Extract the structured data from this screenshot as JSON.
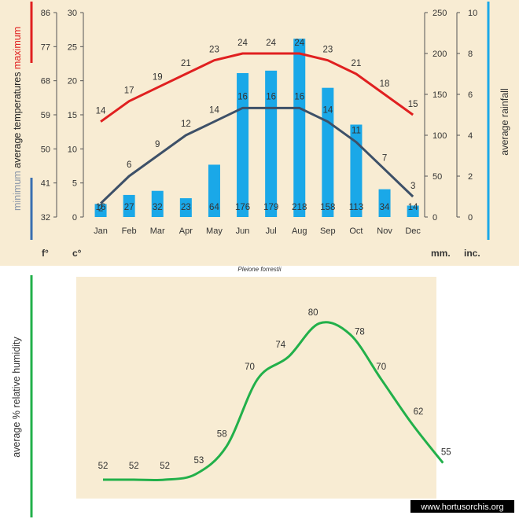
{
  "chart_data": [
    {
      "type": "bar+line",
      "subtitle": "Pleione forrestii",
      "categories": [
        "Jan",
        "Feb",
        "Mar",
        "Apr",
        "May",
        "Jun",
        "Jul",
        "Aug",
        "Sep",
        "Oct",
        "Nov",
        "Dec"
      ],
      "rainfall_mm": [
        16,
        27,
        32,
        23,
        64,
        176,
        179,
        218,
        158,
        113,
        34,
        14
      ],
      "series": [
        {
          "name": "maximum",
          "color": "#e02020",
          "values": [
            14,
            17,
            19,
            21,
            23,
            24,
            24,
            24,
            23,
            21,
            18,
            15
          ]
        },
        {
          "name": "minimum",
          "color": "#3d5068",
          "values": [
            2,
            6,
            9,
            12,
            14,
            16,
            16,
            16,
            14,
            11,
            7,
            3
          ]
        }
      ],
      "bar_color": "#1aa8e8",
      "y_celsius": {
        "ticks": [
          0,
          5,
          10,
          15,
          20,
          25,
          30
        ],
        "range": [
          0,
          30
        ]
      },
      "y_fahrenheit": {
        "ticks": [
          "32",
          "41",
          "50",
          "59",
          "68",
          "77",
          "86"
        ]
      },
      "y_mm": {
        "ticks": [
          0,
          50,
          100,
          150,
          200,
          250
        ],
        "range": [
          0,
          250
        ]
      },
      "y_inches": {
        "ticks": [
          0,
          2,
          4,
          6,
          8,
          10
        ]
      },
      "left_title": "average temperatures",
      "max_label": "maximum",
      "min_label": "minimum",
      "right_title": "average rainfall",
      "unit_f": "f°",
      "unit_c": "c°",
      "unit_mm": "mm.",
      "unit_in": "inc."
    },
    {
      "type": "line",
      "categories": [
        "Jan",
        "Feb",
        "Mar",
        "Apr",
        "May",
        "Jun",
        "Jul",
        "Aug",
        "Sep",
        "Oct",
        "Nov",
        "Dec"
      ],
      "values": [
        52,
        52,
        52,
        53,
        58,
        70,
        74,
        80,
        78,
        70,
        62,
        55
      ],
      "ylabel": "average %  relative humidity",
      "color": "#22b04a"
    }
  ],
  "colors": {
    "max_bar": "#e02020",
    "min_bar": "#3a6fb0",
    "rain_bar": "#1aa8e8",
    "humidity_bar": "#22b04a"
  },
  "watermark": "www.hortusorchis.org"
}
